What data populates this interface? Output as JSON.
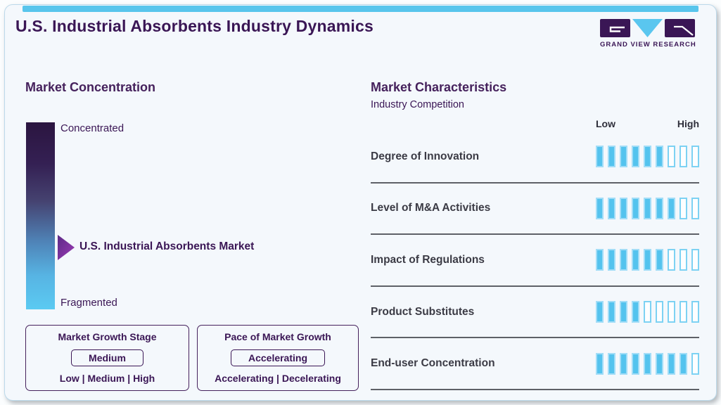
{
  "page": {
    "title": "U.S. Industrial Absorbents Industry Dynamics",
    "brand_name": "GRAND VIEW RESEARCH"
  },
  "market_concentration": {
    "heading": "Market Concentration",
    "scale_top": "Concentrated",
    "scale_bottom": "Fragmented",
    "marker_label": "U.S. Industrial Absorbents Market",
    "boxes": [
      {
        "title": "Market Growth Stage",
        "value": "Medium",
        "options": "Low | Medium | High"
      },
      {
        "title": "Pace of Market Growth",
        "value": "Accelerating",
        "options": "Accelerating | Decelerating"
      }
    ]
  },
  "market_characteristics": {
    "heading": "Market Characteristics",
    "subheading": "Industry Competition",
    "scale_low": "Low",
    "scale_high": "High",
    "rows": [
      {
        "label": "Degree of Innovation",
        "filled": 6,
        "total": 9
      },
      {
        "label": "Level of M&A Activities",
        "filled": 7,
        "total": 9
      },
      {
        "label": "Impact of Regulations",
        "filled": 6,
        "total": 9
      },
      {
        "label": "Product Substitutes",
        "filled": 4,
        "total": 9
      },
      {
        "label": "End-user Concentration",
        "filled": 8,
        "total": 9
      }
    ]
  },
  "colors": {
    "accent_blue": "#58C5EC",
    "bar_fill_blue": "#54C3EE",
    "dark_purple": "#3A1655",
    "arrow_purple": "#7B2B9B",
    "gradient_top": "#2B1540",
    "gradient_bottom": "#5BCAF2",
    "separator_gray": "#5E6167"
  },
  "chart_data": {
    "type": "bar",
    "title": "Industry Competition",
    "categories": [
      "Degree of Innovation",
      "Level of M&A Activities",
      "Impact of Regulations",
      "Product Substitutes",
      "End-user Concentration"
    ],
    "values": [
      6,
      7,
      6,
      4,
      8
    ],
    "scale_max": 9,
    "scale_labels": [
      "Low",
      "High"
    ],
    "legend_position": "none",
    "grid": false
  }
}
